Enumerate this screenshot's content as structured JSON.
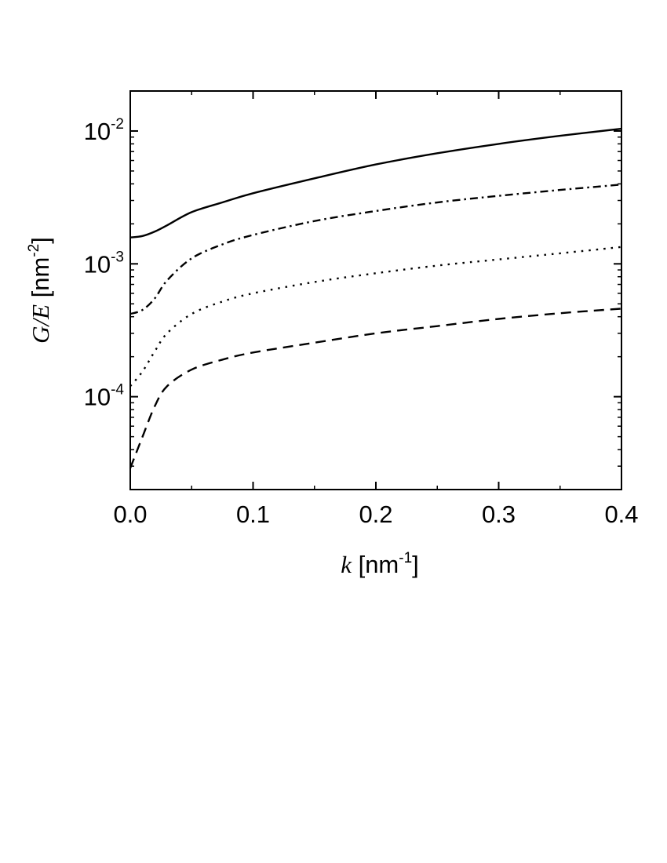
{
  "chart_data": {
    "type": "line",
    "title": "",
    "x_scale": "linear",
    "y_scale": "log",
    "xlim": [
      0.0,
      0.4
    ],
    "ylim": [
      2e-05,
      0.02
    ],
    "grid": false,
    "legend": "none",
    "x_ticks": [
      {
        "value": 0.0,
        "label": "0.0"
      },
      {
        "value": 0.1,
        "label": "0.1"
      },
      {
        "value": 0.2,
        "label": "0.2"
      },
      {
        "value": 0.3,
        "label": "0.3"
      },
      {
        "value": 0.4,
        "label": "0.4"
      }
    ],
    "y_ticks": [
      {
        "value": 0.0001,
        "base": "10",
        "exp": "-4"
      },
      {
        "value": 0.001,
        "base": "10",
        "exp": "-3"
      },
      {
        "value": 0.01,
        "base": "10",
        "exp": "-2"
      }
    ],
    "xlabel": {
      "var": "k",
      "unit_open": " [nm",
      "unit_exp": "-1",
      "unit_close": "]"
    },
    "ylabel": {
      "var": "G/E",
      "unit_open": " [nm",
      "unit_exp": "-2",
      "unit_close": "]"
    },
    "x": [
      0.0,
      0.01,
      0.02,
      0.03,
      0.05,
      0.075,
      0.1,
      0.15,
      0.2,
      0.25,
      0.3,
      0.35,
      0.4
    ],
    "series": [
      {
        "style": "solid",
        "color": "#000000",
        "values": [
          0.00158,
          0.00162,
          0.00175,
          0.00195,
          0.00245,
          0.0029,
          0.0034,
          0.0044,
          0.0056,
          0.0068,
          0.008,
          0.0092,
          0.0104
        ]
      },
      {
        "style": "dash-dot",
        "color": "#000000",
        "values": [
          0.00042,
          0.00045,
          0.00055,
          0.00075,
          0.0011,
          0.0014,
          0.00165,
          0.0021,
          0.0025,
          0.0029,
          0.00325,
          0.0036,
          0.00395
        ]
      },
      {
        "style": "dotted",
        "color": "#000000",
        "values": [
          0.00012,
          0.000155,
          0.00022,
          0.0003,
          0.00042,
          0.00052,
          0.0006,
          0.00073,
          0.00085,
          0.00097,
          0.00108,
          0.0012,
          0.00134
        ]
      },
      {
        "style": "dashed",
        "color": "#000000",
        "values": [
          2.9e-05,
          5e-05,
          8.5e-05,
          0.00012,
          0.00016,
          0.00019,
          0.000215,
          0.000255,
          0.0003,
          0.00034,
          0.000385,
          0.000425,
          0.00046
        ]
      }
    ]
  }
}
